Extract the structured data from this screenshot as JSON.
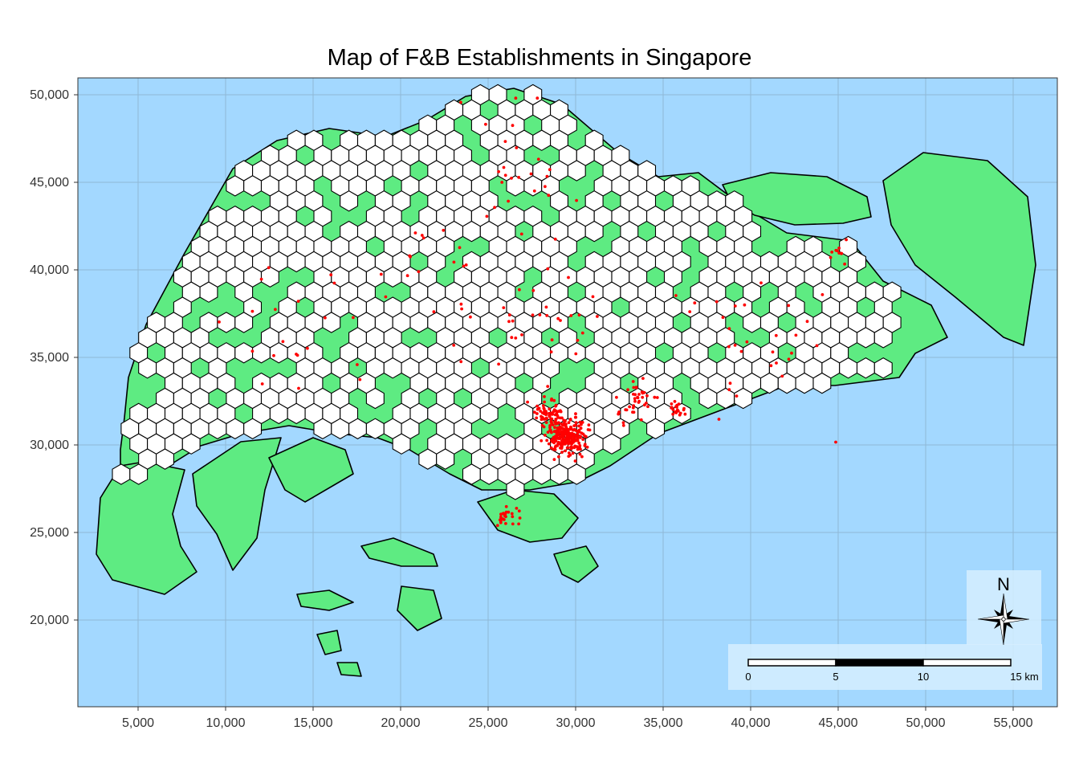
{
  "title": "Map of F&B Establishments in Singapore",
  "colors": {
    "sea": "#A3D8FF",
    "land": "#5EEB82",
    "hex_fill": "#FFFFFF",
    "hex_stroke": "#000000",
    "point": "#FF0000",
    "grid": "#8FB8D6",
    "panel_overlay": "#D6EEFF"
  },
  "chart_data": {
    "type": "map",
    "title": "Map of F&B Establishments in Singapore",
    "xlim": [
      2000,
      57000
    ],
    "ylim": [
      15000,
      51000
    ],
    "x_ticks": [
      5000,
      10000,
      15000,
      20000,
      25000,
      30000,
      35000,
      40000,
      45000,
      50000,
      55000
    ],
    "x_tick_labels": [
      "5,000",
      "10,000",
      "15,000",
      "20,000",
      "25,000",
      "30,000",
      "35,000",
      "40,000",
      "45,000",
      "50,000",
      "55,000"
    ],
    "y_ticks": [
      20000,
      25000,
      30000,
      35000,
      40000,
      45000,
      50000
    ],
    "y_tick_labels": [
      "20,000",
      "25,000",
      "30,000",
      "35,000",
      "40,000",
      "45,000",
      "50,000"
    ],
    "grid": true,
    "layers": [
      "land polygons",
      "hexagon grid",
      "F&B establishment points"
    ],
    "point_clusters": [
      {
        "x": 29500,
        "y": 30500,
        "count": 260,
        "spread": 900
      },
      {
        "x": 28500,
        "y": 31800,
        "count": 60,
        "spread": 700
      },
      {
        "x": 33500,
        "y": 32500,
        "count": 40,
        "spread": 900
      },
      {
        "x": 35800,
        "y": 32000,
        "count": 20,
        "spread": 400
      },
      {
        "x": 26200,
        "y": 25900,
        "count": 25,
        "spread": 600
      },
      {
        "x": 45000,
        "y": 41000,
        "count": 10,
        "spread": 700
      },
      {
        "x": 28700,
        "y": 37000,
        "count": 20,
        "spread": 3000
      },
      {
        "x": 23000,
        "y": 38000,
        "count": 30,
        "spread": 4000
      },
      {
        "x": 14000,
        "y": 36000,
        "count": 20,
        "spread": 3500
      },
      {
        "x": 40000,
        "y": 36500,
        "count": 30,
        "spread": 3500
      },
      {
        "x": 26500,
        "y": 45500,
        "count": 25,
        "spread": 3000
      }
    ]
  },
  "scale_bar": {
    "labels": [
      "0",
      "5",
      "10",
      "15 km"
    ],
    "segments_km": [
      5,
      5,
      5
    ]
  },
  "north_arrow": {
    "label": "N"
  }
}
